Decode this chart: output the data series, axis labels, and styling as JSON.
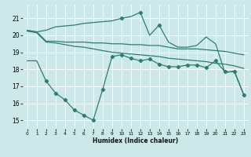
{
  "xlabel": "Humidex (Indice chaleur)",
  "bg_color": "#cce8e8",
  "grid_color": "#ffffff",
  "line_color": "#2e7d6e",
  "ylim": [
    14.5,
    21.8
  ],
  "xlim": [
    -0.5,
    23.5
  ],
  "yticks": [
    15,
    16,
    17,
    18,
    19,
    20,
    21
  ],
  "xticks": [
    0,
    1,
    2,
    3,
    4,
    5,
    6,
    7,
    8,
    9,
    10,
    11,
    12,
    13,
    14,
    15,
    16,
    17,
    18,
    19,
    20,
    21,
    22,
    23
  ],
  "line1_x": [
    0,
    1,
    2,
    3,
    4,
    5,
    6,
    7,
    8,
    9,
    10,
    11,
    12,
    13,
    14,
    15,
    16,
    17,
    18,
    19,
    20,
    21,
    22,
    23
  ],
  "line1_y": [
    20.3,
    20.2,
    20.3,
    20.5,
    20.55,
    20.6,
    20.7,
    20.75,
    20.8,
    20.85,
    21.0,
    21.1,
    21.35,
    20.0,
    20.6,
    19.6,
    19.3,
    19.3,
    19.4,
    19.9,
    19.5,
    17.8,
    17.9,
    16.5
  ],
  "line1_markers": [
    10,
    12,
    14
  ],
  "line2_x": [
    0,
    1,
    2,
    3,
    4,
    5,
    6,
    7,
    8,
    9,
    10,
    11,
    12,
    13,
    14,
    15,
    16,
    17,
    18,
    19,
    20,
    21,
    22,
    23
  ],
  "line2_y": [
    20.25,
    20.2,
    19.65,
    19.65,
    19.6,
    19.6,
    19.6,
    19.55,
    19.55,
    19.5,
    19.5,
    19.45,
    19.45,
    19.4,
    19.4,
    19.3,
    19.2,
    19.2,
    19.2,
    19.15,
    19.1,
    19.05,
    18.95,
    18.85
  ],
  "line3_x": [
    0,
    1,
    2,
    3,
    4,
    5,
    6,
    7,
    8,
    9,
    10,
    11,
    12,
    13,
    14,
    15,
    16,
    17,
    18,
    19,
    20,
    21,
    22,
    23
  ],
  "line3_y": [
    20.25,
    20.15,
    19.6,
    19.55,
    19.45,
    19.35,
    19.3,
    19.2,
    19.1,
    19.0,
    18.95,
    18.9,
    18.85,
    18.8,
    18.75,
    18.65,
    18.6,
    18.55,
    18.5,
    18.45,
    18.35,
    18.3,
    18.2,
    18.05
  ],
  "line4_x": [
    0,
    1,
    2,
    3,
    4,
    5,
    6,
    7,
    8,
    9,
    10,
    11,
    12,
    13,
    14,
    15,
    16,
    17,
    18,
    19,
    20,
    21,
    22,
    23
  ],
  "line4_y": [
    18.5,
    18.5,
    17.3,
    16.6,
    16.2,
    15.6,
    15.3,
    15.0,
    16.8,
    18.75,
    18.85,
    18.65,
    18.5,
    18.6,
    18.3,
    18.15,
    18.15,
    18.25,
    18.25,
    18.1,
    18.5,
    17.85,
    17.85,
    16.5
  ],
  "line4_markers": [
    2,
    3,
    4,
    5,
    6,
    7,
    8,
    9,
    10,
    11,
    12,
    13,
    14,
    15,
    16,
    17,
    18,
    19,
    20,
    21,
    22,
    23
  ]
}
